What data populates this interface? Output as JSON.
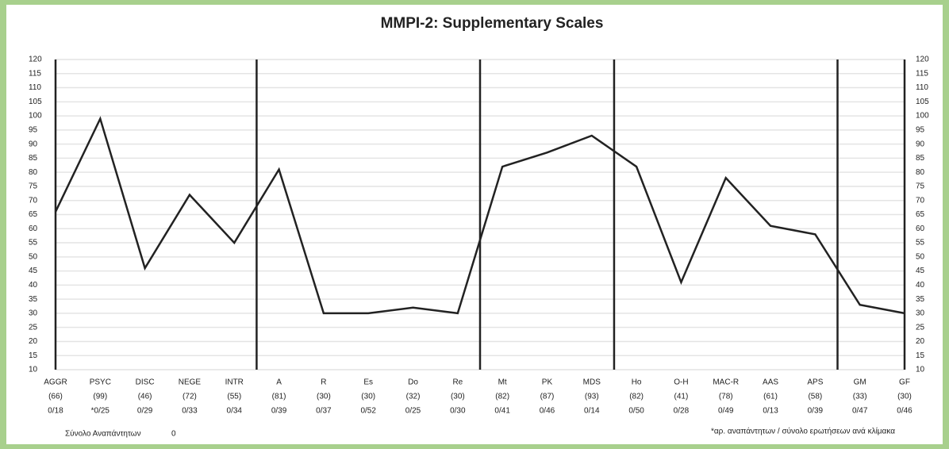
{
  "chart_data": {
    "type": "line",
    "title": "MMPI-2: Supplementary Scales",
    "categories": [
      "AGGR",
      "PSYC",
      "DISC",
      "NEGE",
      "INTR",
      "A",
      "R",
      "Es",
      "Do",
      "Re",
      "Mt",
      "PK",
      "MDS",
      "Ho",
      "O-H",
      "MAC-R",
      "AAS",
      "APS",
      "GM",
      "GF"
    ],
    "series": [
      {
        "name": "Supplementary Scales",
        "color": "#222222",
        "values": [
          66,
          99,
          46,
          72,
          55,
          81,
          30,
          30,
          32,
          30,
          82,
          87,
          93,
          82,
          41,
          78,
          61,
          58,
          33,
          30
        ],
        "value_labels": [
          "(66)",
          "(99)",
          "(46)",
          "(72)",
          "(55)",
          "(81)",
          "(30)",
          "(30)",
          "(32)",
          "(30)",
          "(82)",
          "(87)",
          "(93)",
          "(82)",
          "(41)",
          "(78)",
          "(61)",
          "(58)",
          "(33)",
          "(30)"
        ]
      }
    ],
    "raw_scores": [
      "0/18",
      "*0/25",
      "0/29",
      "0/33",
      "0/34",
      "0/39",
      "0/37",
      "0/52",
      "0/25",
      "0/30",
      "0/41",
      "0/46",
      "0/14",
      "0/50",
      "0/28",
      "0/49",
      "0/13",
      "0/39",
      "0/47",
      "0/46"
    ],
    "ylim": [
      10,
      120
    ],
    "yticks": [
      10,
      15,
      20,
      25,
      30,
      35,
      40,
      45,
      50,
      55,
      60,
      65,
      70,
      75,
      80,
      85,
      90,
      95,
      100,
      105,
      110,
      115,
      120
    ],
    "y2lim": [
      10,
      120
    ],
    "y2ticks": [
      10,
      15,
      20,
      25,
      30,
      35,
      40,
      45,
      50,
      55,
      60,
      65,
      70,
      75,
      80,
      85,
      90,
      95,
      100,
      105,
      110,
      115,
      120
    ],
    "grid": true,
    "footer_left_label": "Σύνολο Αναπάντητων",
    "footer_left_value": 0,
    "footnote": "*αρ. αναπάντητων / σύνολο ερωτήσεων ανά κλίμακα"
  }
}
